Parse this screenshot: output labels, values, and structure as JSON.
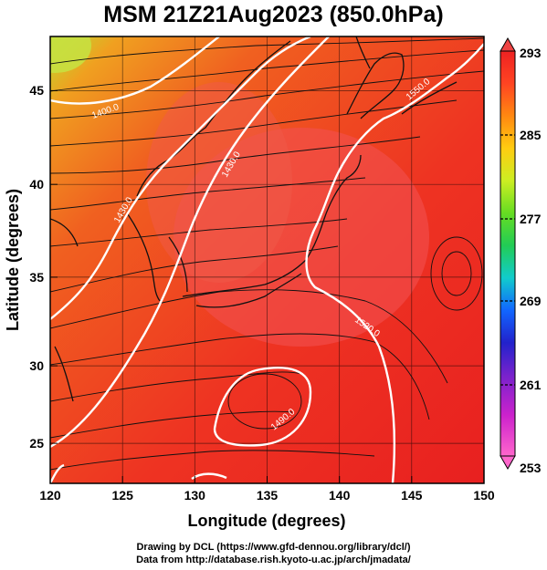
{
  "title": "MSM 21Z21Aug2023 (850.0hPa)",
  "footer": {
    "line1": "Drawing by DCL (https://www.gfd-dennou.org/library/dcl/)",
    "line2": "Data from http://database.rish.kyoto-u.ac.jp/arch/jmadata/"
  },
  "axes": {
    "xlabel": "Longitude (degrees)",
    "ylabel": "Latitude  (degrees)",
    "xlim": [
      120,
      150
    ],
    "ylim": [
      22.4,
      47.6
    ],
    "x_ticks": [
      120,
      125,
      130,
      135,
      140,
      145,
      150
    ],
    "y_ticks": [
      25,
      30,
      35,
      40,
      45
    ]
  },
  "colorbar": {
    "min": 253,
    "max": 293,
    "labels": [
      293,
      285,
      277,
      269,
      261,
      253
    ],
    "colors": [
      "#ff66cc",
      "#cc22cc",
      "#7722cc",
      "#2222cc",
      "#1166ff",
      "#11cccc",
      "#22cc55",
      "#66dd22",
      "#ccee22",
      "#ffcc11",
      "#ff8811",
      "#ff4422",
      "#ee2222"
    ]
  },
  "contours": [
    {
      "label": "1400.0"
    },
    {
      "label": "1430.0"
    },
    {
      "label": "1460.0"
    },
    {
      "label": "1490.0"
    },
    {
      "label": "1520.0"
    },
    {
      "label": "1550.0"
    }
  ]
}
